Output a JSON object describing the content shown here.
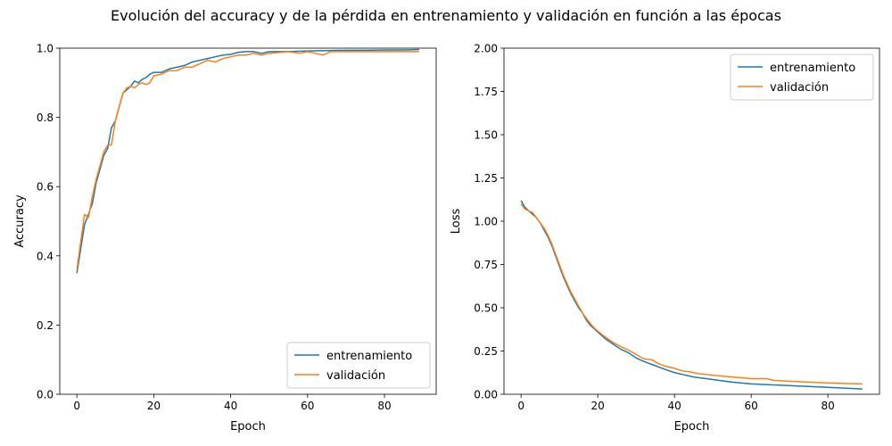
{
  "figure": {
    "title": "Evolución del accuracy y de la pérdida en entrenamiento y validación en función a las épocas"
  },
  "colors": {
    "train": "#1f77b4",
    "val": "#ff7f0e"
  },
  "chart_data": [
    {
      "type": "line",
      "xlabel": "Epoch",
      "ylabel": "Accuracy",
      "xlim": [
        -4.45,
        93.45
      ],
      "ylim": [
        0.0,
        1.0
      ],
      "xticks": [
        0,
        20,
        40,
        60,
        80
      ],
      "yticks": [
        0.0,
        0.2,
        0.4,
        0.6,
        0.8,
        1.0
      ],
      "ytick_labels": [
        "0.0",
        "0.2",
        "0.4",
        "0.6",
        "0.8",
        "1.0"
      ],
      "legend_position": "lower right",
      "series": [
        {
          "name": "entrenamiento",
          "color": "#1f77b4",
          "x": [
            0,
            1,
            2,
            3,
            4,
            5,
            6,
            7,
            8,
            9,
            10,
            11,
            12,
            13,
            14,
            15,
            16,
            17,
            18,
            19,
            20,
            22,
            24,
            26,
            28,
            30,
            32,
            34,
            36,
            38,
            40,
            42,
            44,
            46,
            48,
            50,
            55,
            60,
            65,
            70,
            75,
            80,
            85,
            89
          ],
          "y": [
            0.35,
            0.42,
            0.49,
            0.52,
            0.55,
            0.61,
            0.65,
            0.69,
            0.71,
            0.77,
            0.79,
            0.83,
            0.87,
            0.88,
            0.89,
            0.905,
            0.9,
            0.91,
            0.915,
            0.925,
            0.93,
            0.93,
            0.94,
            0.945,
            0.95,
            0.96,
            0.965,
            0.97,
            0.975,
            0.98,
            0.982,
            0.988,
            0.99,
            0.99,
            0.985,
            0.99,
            0.99,
            0.992,
            0.993,
            0.994,
            0.994,
            0.995,
            0.995,
            0.996
          ]
        },
        {
          "name": "validación",
          "color": "#ff7f0e",
          "x": [
            0,
            1,
            2,
            3,
            4,
            5,
            6,
            7,
            8,
            9,
            10,
            11,
            12,
            13,
            14,
            15,
            16,
            17,
            18,
            19,
            20,
            22,
            24,
            26,
            28,
            30,
            32,
            34,
            36,
            37,
            38,
            40,
            42,
            44,
            46,
            48,
            50,
            55,
            58,
            60,
            62,
            64,
            66,
            68,
            70,
            75,
            80,
            85,
            89
          ],
          "y": [
            0.36,
            0.44,
            0.52,
            0.51,
            0.57,
            0.62,
            0.66,
            0.7,
            0.72,
            0.72,
            0.79,
            0.83,
            0.87,
            0.885,
            0.89,
            0.885,
            0.895,
            0.9,
            0.895,
            0.9,
            0.92,
            0.925,
            0.935,
            0.935,
            0.945,
            0.945,
            0.955,
            0.965,
            0.96,
            0.965,
            0.97,
            0.975,
            0.98,
            0.98,
            0.985,
            0.98,
            0.985,
            0.99,
            0.985,
            0.99,
            0.985,
            0.98,
            0.99,
            0.99,
            0.99,
            0.99,
            0.99,
            0.99,
            0.99
          ]
        }
      ]
    },
    {
      "type": "line",
      "xlabel": "Epoch",
      "ylabel": "Loss",
      "xlim": [
        -4.45,
        93.45
      ],
      "ylim": [
        0.0,
        2.0
      ],
      "xticks": [
        0,
        20,
        40,
        60,
        80
      ],
      "yticks": [
        0.0,
        0.25,
        0.5,
        0.75,
        1.0,
        1.25,
        1.5,
        1.75,
        2.0
      ],
      "ytick_labels": [
        "0.00",
        "0.25",
        "0.50",
        "0.75",
        "1.00",
        "1.25",
        "1.50",
        "1.75",
        "2.00"
      ],
      "legend_position": "upper right",
      "series": [
        {
          "name": "entrenamiento",
          "color": "#1f77b4",
          "x": [
            0,
            1,
            2,
            3,
            4,
            5,
            6,
            7,
            8,
            9,
            10,
            11,
            12,
            13,
            14,
            15,
            16,
            17,
            18,
            19,
            20,
            21,
            22,
            24,
            26,
            28,
            30,
            32,
            35,
            38,
            40,
            42,
            45,
            50,
            55,
            60,
            65,
            70,
            75,
            80,
            85,
            89
          ],
          "y": [
            1.12,
            1.08,
            1.06,
            1.04,
            1.02,
            0.99,
            0.95,
            0.91,
            0.86,
            0.8,
            0.74,
            0.68,
            0.63,
            0.58,
            0.54,
            0.5,
            0.47,
            0.43,
            0.4,
            0.38,
            0.36,
            0.34,
            0.32,
            0.29,
            0.26,
            0.24,
            0.21,
            0.19,
            0.165,
            0.14,
            0.125,
            0.115,
            0.1,
            0.085,
            0.07,
            0.06,
            0.055,
            0.05,
            0.045,
            0.04,
            0.035,
            0.03
          ]
        },
        {
          "name": "validación",
          "color": "#ff7f0e",
          "x": [
            0,
            1,
            2,
            3,
            4,
            5,
            6,
            7,
            8,
            9,
            10,
            11,
            12,
            13,
            14,
            15,
            16,
            17,
            18,
            19,
            20,
            22,
            24,
            26,
            28,
            30,
            32,
            34,
            36,
            38,
            40,
            42,
            44,
            46,
            48,
            50,
            55,
            60,
            64,
            66,
            70,
            75,
            80,
            85,
            89
          ],
          "y": [
            1.1,
            1.07,
            1.06,
            1.05,
            1.02,
            0.99,
            0.96,
            0.92,
            0.87,
            0.81,
            0.75,
            0.69,
            0.64,
            0.59,
            0.55,
            0.51,
            0.47,
            0.44,
            0.41,
            0.385,
            0.365,
            0.33,
            0.3,
            0.275,
            0.255,
            0.23,
            0.205,
            0.2,
            0.175,
            0.16,
            0.15,
            0.135,
            0.13,
            0.12,
            0.115,
            0.11,
            0.1,
            0.09,
            0.09,
            0.08,
            0.075,
            0.07,
            0.065,
            0.062,
            0.06
          ]
        }
      ]
    }
  ]
}
